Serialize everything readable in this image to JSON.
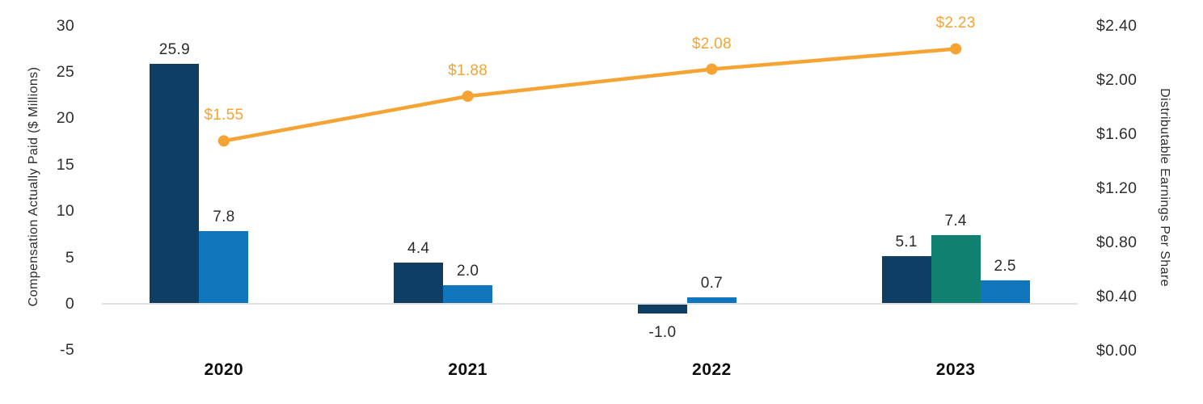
{
  "chart_data": {
    "type": "combo-bar-line",
    "categories": [
      "2020",
      "2021",
      "2022",
      "2023"
    ],
    "bars": {
      "series": [
        {
          "name": "navy-bars",
          "color_key": "navy",
          "points": [
            {
              "category": "2020",
              "value": 25.9,
              "label": "25.9",
              "slot": 0
            },
            {
              "category": "2021",
              "value": 4.4,
              "label": "4.4",
              "slot": 0
            },
            {
              "category": "2022",
              "value": -1.0,
              "label": "-1.0",
              "slot": 0
            },
            {
              "category": "2023",
              "value": 5.1,
              "label": "5.1",
              "slot": 0
            }
          ]
        },
        {
          "name": "teal-bars",
          "color_key": "teal",
          "points": [
            {
              "category": "2023",
              "value": 7.4,
              "label": "7.4",
              "slot": 1
            }
          ]
        },
        {
          "name": "blue-bars",
          "color_key": "blue",
          "points": [
            {
              "category": "2020",
              "value": 7.8,
              "label": "7.8",
              "slot": 1
            },
            {
              "category": "2021",
              "value": 2.0,
              "label": "2.0",
              "slot": 1
            },
            {
              "category": "2022",
              "value": 0.7,
              "label": "0.7",
              "slot": 1
            },
            {
              "category": "2023",
              "value": 2.5,
              "label": "2.5",
              "slot": 2
            }
          ]
        }
      ]
    },
    "line": {
      "name": "eps-line",
      "color_key": "orange",
      "points": [
        {
          "category": "2020",
          "value": 1.55,
          "label": "$1.55"
        },
        {
          "category": "2021",
          "value": 1.88,
          "label": "$1.88"
        },
        {
          "category": "2022",
          "value": 2.08,
          "label": "$2.08"
        },
        {
          "category": "2023",
          "value": 2.23,
          "label": "$2.23"
        }
      ]
    },
    "left_axis": {
      "title": "Compensation Actually Paid ($ Millions)",
      "range": [
        -5,
        30
      ],
      "ticks": [
        "30",
        "25",
        "20",
        "15",
        "10",
        "5",
        "0",
        "-5"
      ],
      "tick_values": [
        30,
        25,
        20,
        15,
        10,
        5,
        0,
        -5
      ]
    },
    "right_axis": {
      "title": "Distributable Earnings Per Share",
      "range": [
        0,
        2.4
      ],
      "ticks": [
        "$2.40",
        "$2.00",
        "$1.60",
        "$1.20",
        "$0.80",
        "$0.40",
        "$0.00"
      ],
      "tick_values": [
        2.4,
        2.0,
        1.6,
        1.2,
        0.8,
        0.4,
        0.0
      ]
    },
    "legend": "none",
    "grid": "zero-baseline-only"
  },
  "colors": {
    "navy": "#0E3E63",
    "teal": "#108170",
    "blue": "#0F76BB",
    "orange": "#F5A333",
    "baseline": "#E1E1E1",
    "background": "#FFFFFF"
  }
}
